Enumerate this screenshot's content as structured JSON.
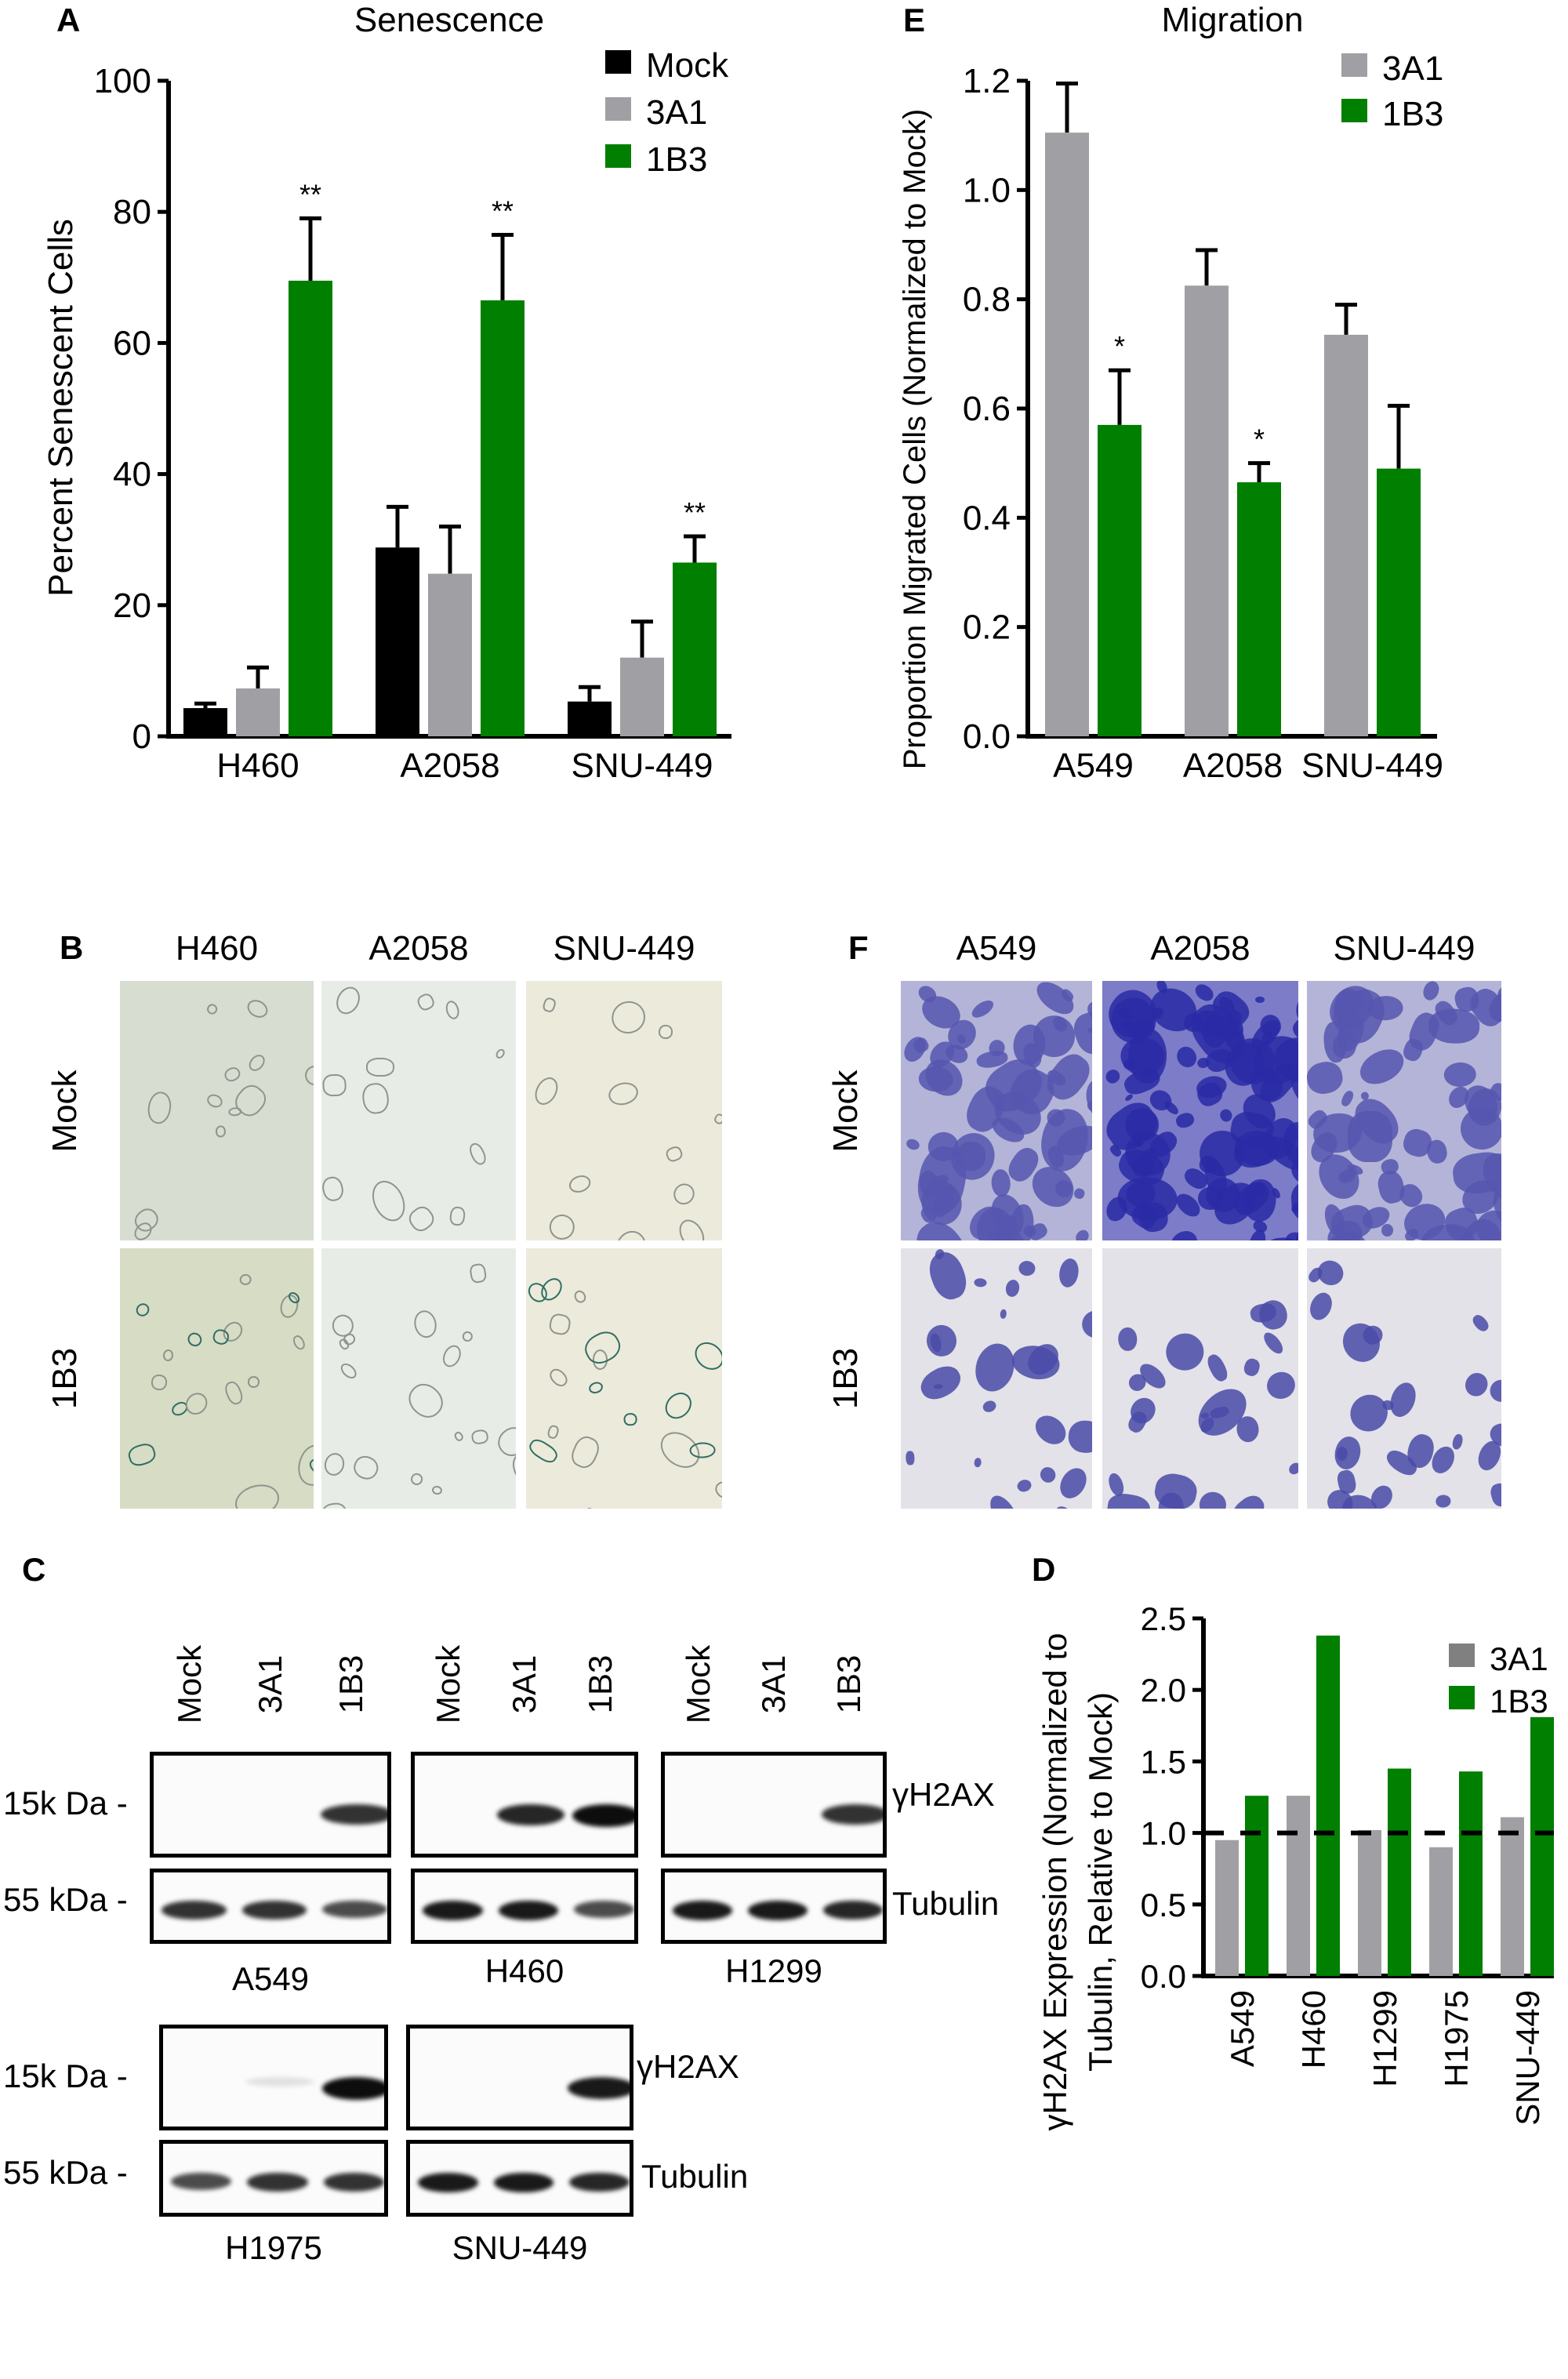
{
  "panel_labels": {
    "A": "A",
    "B": "B",
    "C": "C",
    "D": "D",
    "E": "E",
    "F": "F"
  },
  "colors": {
    "mock": "#000000",
    "3A1": "#a0a0a4",
    "1B3": "#007f00",
    "3A1_D_legend": "#808080"
  },
  "chart_data": [
    {
      "panel": "A",
      "type": "bar",
      "title": "Senescence",
      "ylabel": "Percent Senescent Cells",
      "categories": [
        "H460",
        "A2058",
        "SNU-449"
      ],
      "ylim": [
        0,
        100
      ],
      "yticks": [
        "0",
        "20",
        "40",
        "60",
        "80",
        "100"
      ],
      "legend_placement": "top-right",
      "error_bars": true,
      "series": [
        {
          "name": "Mock",
          "values": [
            4.3,
            28.8,
            5.3
          ],
          "error_top": [
            5.0,
            35.0,
            7.5
          ],
          "annotations": [
            "",
            "",
            ""
          ]
        },
        {
          "name": "3A1",
          "values": [
            7.3,
            24.8,
            12.0
          ],
          "error_top": [
            10.5,
            32.0,
            17.5
          ],
          "annotations": [
            "",
            "",
            ""
          ]
        },
        {
          "name": "1B3",
          "values": [
            69.5,
            66.5,
            26.5
          ],
          "error_top": [
            79.0,
            76.5,
            30.5
          ],
          "annotations": [
            "**",
            "**",
            "**"
          ]
        }
      ]
    },
    {
      "panel": "E",
      "type": "bar",
      "title": "Migration",
      "ylabel": "Proportion Migrated Cells (Normalized to Mock)",
      "categories": [
        "A549",
        "A2058",
        "SNU-449"
      ],
      "ylim": [
        0,
        1.2
      ],
      "yticks": [
        "0.0",
        "0.2",
        "0.4",
        "0.6",
        "0.8",
        "1.0",
        "1.2"
      ],
      "legend_placement": "top-right",
      "error_bars": true,
      "series": [
        {
          "name": "3A1",
          "values": [
            1.105,
            0.825,
            0.735
          ],
          "error_top": [
            1.195,
            0.89,
            0.79
          ],
          "annotations": [
            "",
            "",
            ""
          ]
        },
        {
          "name": "1B3",
          "values": [
            0.57,
            0.465,
            0.49
          ],
          "error_top": [
            0.67,
            0.5,
            0.605
          ],
          "annotations": [
            "*",
            "*",
            ""
          ]
        }
      ]
    },
    {
      "panel": "D",
      "type": "bar",
      "title": "",
      "ylabel": "γH2AX Expression (Normalized to Tubulin, Relative to Mock)",
      "ylabel_lines": [
        "γH2AX Expression (Normalized to",
        "Tubulin, Relative to Mock)"
      ],
      "categories": [
        "A549",
        "H460",
        "H1299",
        "H1975",
        "SNU-449"
      ],
      "ylim": [
        0,
        2.5
      ],
      "yticks": [
        "0.0",
        "0.5",
        "1.0",
        "1.5",
        "2.0",
        "2.5"
      ],
      "reference_line": 1.0,
      "legend_placement": "top-right",
      "error_bars": false,
      "series": [
        {
          "name": "3A1",
          "values": [
            0.95,
            1.26,
            1.02,
            0.9,
            1.11
          ]
        },
        {
          "name": "1B3",
          "values": [
            1.26,
            2.38,
            1.45,
            1.43,
            1.81
          ]
        }
      ]
    }
  ],
  "panel_B": {
    "columns": [
      "H460",
      "A2058",
      "SNU-449"
    ],
    "rows": [
      "Mock",
      "1B3"
    ]
  },
  "panel_F": {
    "columns": [
      "A549",
      "A2058",
      "SNU-449"
    ],
    "rows": [
      "Mock",
      "1B3"
    ]
  },
  "panel_C": {
    "lanes": [
      "Mock",
      "3A1",
      "1B3"
    ],
    "marker_top": "15k Da -",
    "marker_bottom": "55 kDa -",
    "protein_top": "γH2AX",
    "protein_bottom": "Tubulin",
    "row1": [
      "A549",
      "H460",
      "H1299"
    ],
    "row2": [
      "H1975",
      "SNU-449"
    ]
  }
}
